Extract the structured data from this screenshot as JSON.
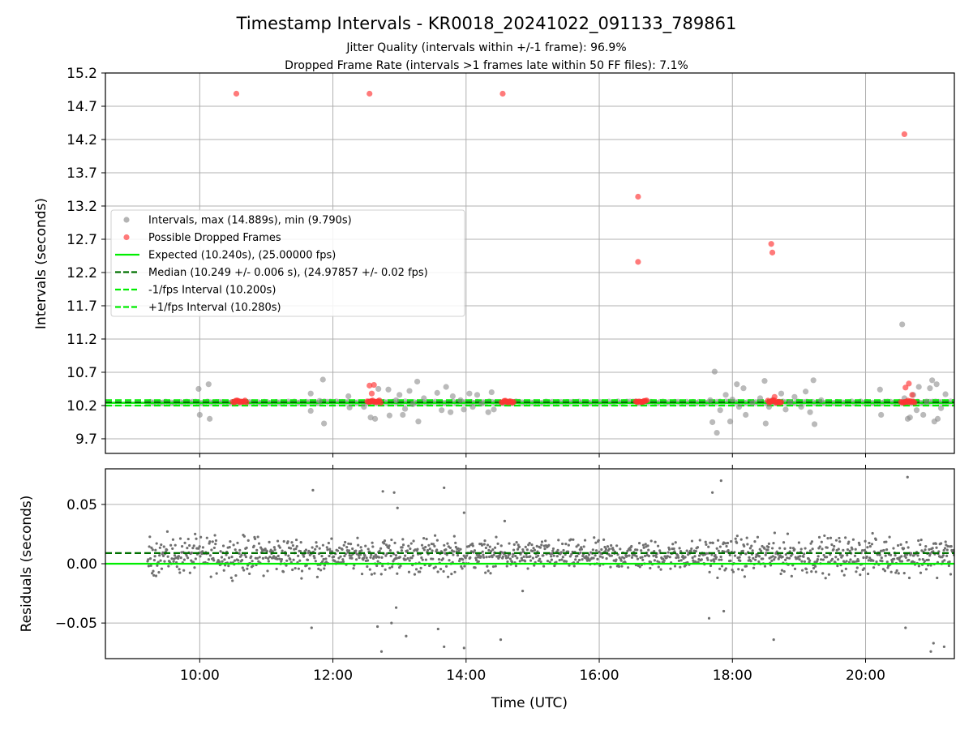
{
  "title": "Timestamp Intervals - KR0018_20241022_091133_789861",
  "subtitle_1": "Jitter Quality (intervals within +/-1 frame): 96.9%",
  "subtitle_2": "Dropped Frame Rate (intervals >1 frames late within 50 FF files): 7.1%",
  "colors": {
    "intervals": "#8c8c8c",
    "dropped": "#ff3333",
    "expected": "#00ee00",
    "median": "#007000",
    "grid": "#c8c8c8"
  },
  "chart_data": [
    {
      "type": "scatter",
      "name": "intervals",
      "xlabel": "",
      "ylabel": "Intervals (seconds)",
      "xlim": [
        "08:35",
        "21:20"
      ],
      "ylim": [
        9.48,
        15.2
      ],
      "x_ticks": [
        "10:00",
        "12:00",
        "14:00",
        "16:00",
        "18:00",
        "20:00"
      ],
      "y_ticks": [
        9.7,
        10.2,
        10.7,
        11.2,
        11.7,
        12.2,
        12.7,
        13.2,
        13.7,
        14.2,
        14.7,
        15.2
      ],
      "grid": true,
      "legend_placement": "upper-left",
      "legend": [
        {
          "label": "Intervals, max (14.889s), min (9.790s)",
          "kind": "marker",
          "color": "#8c8c8c"
        },
        {
          "label": "Possible Dropped Frames",
          "kind": "marker",
          "color": "#ff3333"
        },
        {
          "label": "Expected (10.240s), (25.00000 fps)",
          "kind": "line",
          "color": "#00ee00"
        },
        {
          "label": "Median (10.249 +/- 0.006 s), (24.97857 +/- 0.02 fps)",
          "kind": "dashed",
          "color": "#007000"
        },
        {
          "label": "-1/fps Interval (10.200s)",
          "kind": "dashed",
          "color": "#00ee00"
        },
        {
          "label": "+1/fps Interval (10.280s)",
          "kind": "dashed",
          "color": "#00ee00"
        }
      ],
      "reference_lines": [
        {
          "name": "expected",
          "y": 10.24,
          "style": "solid",
          "color": "#00ee00"
        },
        {
          "name": "median",
          "y": 10.249,
          "style": "dashed",
          "color": "#007000"
        },
        {
          "name": "minus-one-fps",
          "y": 10.2,
          "style": "dashed",
          "color": "#00ee00"
        },
        {
          "name": "plus-one-fps",
          "y": 10.28,
          "style": "dashed",
          "color": "#00ee00"
        }
      ],
      "baseline_band": {
        "from": "09:13",
        "to": "21:20",
        "y": 10.25
      },
      "series": [
        {
          "name": "Intervals",
          "color": "#8c8c8c",
          "points": [
            [
              "09:59",
              10.45
            ],
            [
              "10:00",
              10.06
            ],
            [
              "10:08",
              10.52
            ],
            [
              "10:09",
              10.0
            ],
            [
              "11:40",
              10.38
            ],
            [
              "11:40",
              10.12
            ],
            [
              "11:48",
              10.27
            ],
            [
              "11:51",
              10.59
            ],
            [
              "11:52",
              9.93
            ],
            [
              "12:14",
              10.34
            ],
            [
              "12:15",
              10.17
            ],
            [
              "12:28",
              10.18
            ],
            [
              "12:34",
              10.02
            ],
            [
              "12:38",
              10.0
            ],
            [
              "12:41",
              10.45
            ],
            [
              "12:50",
              10.44
            ],
            [
              "12:51",
              10.05
            ],
            [
              "12:57",
              10.28
            ],
            [
              "13:00",
              10.36
            ],
            [
              "13:03",
              10.06
            ],
            [
              "13:05",
              10.15
            ],
            [
              "13:09",
              10.42
            ],
            [
              "13:12",
              10.22
            ],
            [
              "13:16",
              10.56
            ],
            [
              "13:17",
              9.96
            ],
            [
              "13:22",
              10.31
            ],
            [
              "13:34",
              10.39
            ],
            [
              "13:38",
              10.13
            ],
            [
              "13:42",
              10.48
            ],
            [
              "13:46",
              10.1
            ],
            [
              "13:48",
              10.34
            ],
            [
              "13:55",
              10.28
            ],
            [
              "13:58",
              10.14
            ],
            [
              "14:03",
              10.38
            ],
            [
              "14:06",
              10.18
            ],
            [
              "14:10",
              10.36
            ],
            [
              "14:14",
              10.23
            ],
            [
              "14:20",
              10.1
            ],
            [
              "14:23",
              10.4
            ],
            [
              "14:25",
              10.14
            ],
            [
              "17:40",
              10.28
            ],
            [
              "17:42",
              9.95
            ],
            [
              "17:44",
              10.71
            ],
            [
              "17:46",
              9.79
            ],
            [
              "17:49",
              10.13
            ],
            [
              "17:54",
              10.36
            ],
            [
              "17:58",
              9.96
            ],
            [
              "18:00",
              10.29
            ],
            [
              "18:04",
              10.52
            ],
            [
              "18:06",
              10.18
            ],
            [
              "18:10",
              10.46
            ],
            [
              "18:12",
              10.06
            ],
            [
              "18:18",
              10.24
            ],
            [
              "18:25",
              10.31
            ],
            [
              "18:29",
              10.57
            ],
            [
              "18:30",
              9.93
            ],
            [
              "18:33",
              10.18
            ],
            [
              "18:36",
              10.28
            ],
            [
              "18:44",
              10.38
            ],
            [
              "18:48",
              10.14
            ],
            [
              "18:52",
              10.25
            ],
            [
              "18:56",
              10.33
            ],
            [
              "19:02",
              10.18
            ],
            [
              "19:06",
              10.41
            ],
            [
              "19:10",
              10.1
            ],
            [
              "19:13",
              10.58
            ],
            [
              "19:14",
              9.92
            ],
            [
              "19:20",
              10.28
            ],
            [
              "20:13",
              10.44
            ],
            [
              "20:14",
              10.06
            ],
            [
              "20:35",
              10.31
            ],
            [
              "20:40",
              10.02
            ],
            [
              "20:43",
              10.36
            ],
            [
              "20:46",
              10.13
            ],
            [
              "20:48",
              10.48
            ],
            [
              "20:52",
              10.06
            ],
            [
              "20:55",
              10.26
            ],
            [
              "20:58",
              10.46
            ],
            [
              "21:00",
              10.58
            ],
            [
              "21:02",
              9.96
            ],
            [
              "21:04",
              10.52
            ],
            [
              "21:05",
              10.0
            ],
            [
              "21:08",
              10.16
            ],
            [
              "21:12",
              10.37
            ],
            [
              "20:33",
              11.42
            ],
            [
              "20:38",
              10.0
            ]
          ]
        },
        {
          "name": "Possible Dropped Frames",
          "color": "#ff3333",
          "points": [
            [
              "10:33",
              14.889
            ],
            [
              "12:33",
              14.889
            ],
            [
              "14:33",
              14.889
            ],
            [
              "16:35",
              13.34
            ],
            [
              "16:35",
              12.36
            ],
            [
              "18:35",
              12.63
            ],
            [
              "18:36",
              12.5
            ],
            [
              "20:35",
              14.28
            ],
            [
              "12:33",
              10.5
            ],
            [
              "12:37",
              10.51
            ],
            [
              "12:35",
              10.38
            ],
            [
              "20:36",
              10.47
            ],
            [
              "20:39",
              10.53
            ],
            [
              "20:42",
              10.36
            ],
            [
              "18:38",
              10.33
            ]
          ]
        }
      ],
      "dropped_clusters": [
        {
          "from": "10:30",
          "to": "10:42",
          "y": 10.26
        },
        {
          "from": "12:31",
          "to": "12:44",
          "y": 10.26
        },
        {
          "from": "14:32",
          "to": "14:43",
          "y": 10.26
        },
        {
          "from": "16:33",
          "to": "16:43",
          "y": 10.26
        },
        {
          "from": "18:32",
          "to": "18:44",
          "y": 10.26
        },
        {
          "from": "20:32",
          "to": "20:45",
          "y": 10.26
        }
      ]
    },
    {
      "type": "scatter",
      "name": "residuals",
      "xlabel": "Time (UTC)",
      "ylabel": "Residuals (seconds)",
      "xlim": [
        "08:35",
        "21:20"
      ],
      "ylim": [
        -0.08,
        0.08
      ],
      "x_ticks": [
        "10:00",
        "12:00",
        "14:00",
        "16:00",
        "18:00",
        "20:00"
      ],
      "y_ticks": [
        "0.05",
        "0.00",
        "−0.05"
      ],
      "y_tick_values": [
        0.05,
        0.0,
        -0.05
      ],
      "grid": true,
      "reference_lines": [
        {
          "name": "expected",
          "y": 0.0,
          "style": "solid",
          "color": "#00ee00"
        },
        {
          "name": "median",
          "y": 0.009,
          "style": "dashed",
          "color": "#007000"
        }
      ],
      "residual_band": {
        "from": "09:13",
        "to": "21:20",
        "center": 0.007,
        "spread": 0.012
      },
      "outliers": [
        [
          11.7,
          0.062
        ],
        [
          12.75,
          0.061
        ],
        [
          12.92,
          0.06
        ],
        [
          12.97,
          0.047
        ],
        [
          13.67,
          0.064
        ],
        [
          13.97,
          0.043
        ],
        [
          14.58,
          0.036
        ],
        [
          17.7,
          0.06
        ],
        [
          17.83,
          0.07
        ],
        [
          20.63,
          0.073
        ],
        [
          11.68,
          -0.054
        ],
        [
          12.67,
          -0.053
        ],
        [
          12.73,
          -0.074
        ],
        [
          12.88,
          -0.05
        ],
        [
          12.95,
          -0.037
        ],
        [
          13.1,
          -0.061
        ],
        [
          13.58,
          -0.055
        ],
        [
          13.67,
          -0.07
        ],
        [
          13.97,
          -0.071
        ],
        [
          14.52,
          -0.064
        ],
        [
          14.85,
          -0.023
        ],
        [
          17.65,
          -0.046
        ],
        [
          17.87,
          -0.04
        ],
        [
          18.62,
          -0.064
        ],
        [
          20.6,
          -0.054
        ],
        [
          20.98,
          -0.074
        ],
        [
          21.02,
          -0.067
        ],
        [
          21.18,
          -0.07
        ]
      ]
    }
  ]
}
